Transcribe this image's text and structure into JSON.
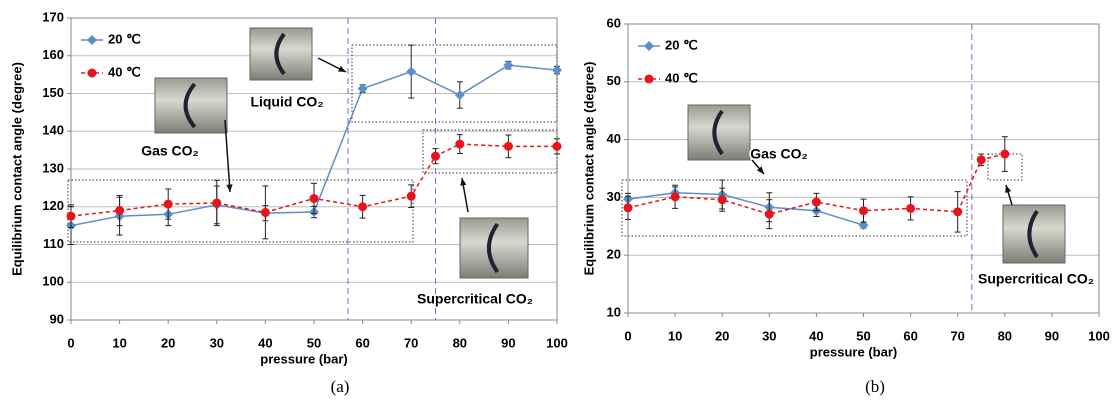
{
  "chart_data": [
    {
      "type": "line",
      "caption": "(a)",
      "xlabel": "pressure (bar)",
      "ylabel": "Equilibrium contact angle (degree)",
      "xlim": [
        0,
        100
      ],
      "xticks": [
        0,
        10,
        20,
        30,
        40,
        50,
        60,
        70,
        80,
        90,
        100
      ],
      "ylim": [
        90,
        170
      ],
      "yticks": [
        90,
        100,
        110,
        120,
        130,
        140,
        150,
        160,
        170
      ],
      "grid": true,
      "legend": "top-left",
      "vlines": [
        57,
        75
      ],
      "series": [
        {
          "name": "20 ℃",
          "color": "#5b8fc9",
          "marker": "diamond",
          "dashed": false,
          "x": [
            0,
            10,
            20,
            30,
            40,
            50,
            60,
            70,
            80,
            90,
            100
          ],
          "values": [
            115,
            117.5,
            118,
            120.5,
            118.3,
            118.6,
            151.3,
            155.8,
            149.6,
            157.5,
            156.2
          ],
          "errors": [
            5,
            5,
            3,
            5,
            2,
            1.5,
            1,
            7,
            3.5,
            1,
            1
          ]
        },
        {
          "name": "40 ℃",
          "color": "#e8141b",
          "marker": "circle",
          "dashed": true,
          "x": [
            0,
            10,
            20,
            30,
            40,
            50,
            60,
            70,
            75,
            80,
            90,
            100
          ],
          "values": [
            117.5,
            119,
            120.7,
            121,
            118.5,
            122.2,
            120,
            122.8,
            133.4,
            136.6,
            136,
            136
          ],
          "errors": [
            3,
            4,
            4,
            6,
            7,
            4,
            3,
            3,
            2,
            2.5,
            3,
            2
          ]
        }
      ],
      "annotations": [
        "Liquid CO₂",
        "Gas CO₂",
        "Supercritical CO₂"
      ]
    },
    {
      "type": "line",
      "caption": "(b)",
      "xlabel": "pressure (bar)",
      "ylabel": "Equilibrium contact angle (degree)",
      "xlim": [
        0,
        100
      ],
      "xticks": [
        0,
        10,
        20,
        30,
        40,
        50,
        60,
        70,
        80,
        90,
        100
      ],
      "ylim": [
        10,
        60
      ],
      "yticks": [
        10,
        20,
        30,
        40,
        50,
        60
      ],
      "grid": true,
      "legend": "top-left",
      "vlines": [
        73
      ],
      "series": [
        {
          "name": "20 ℃",
          "color": "#5b8fc9",
          "marker": "diamond",
          "dashed": false,
          "x": [
            0,
            10,
            20,
            30,
            40,
            50
          ],
          "values": [
            29.7,
            30.8,
            30.5,
            28.3,
            27.7,
            25.2
          ],
          "errors": [
            1,
            1,
            2.5,
            2.5,
            1,
            0.5
          ]
        },
        {
          "name": "40 ℃",
          "color": "#e8141b",
          "marker": "circle",
          "dashed": true,
          "x": [
            0,
            10,
            20,
            30,
            40,
            50,
            60,
            70,
            75,
            80
          ],
          "values": [
            28.2,
            30.1,
            29.6,
            27.1,
            29.2,
            27.7,
            28.1,
            27.5,
            36.5,
            37.5
          ],
          "errors": [
            2,
            2,
            2,
            2.5,
            1.5,
            2,
            2,
            3.5,
            1,
            3
          ]
        }
      ],
      "annotations": [
        "Gas CO₂",
        "Supercritical CO₂"
      ]
    }
  ]
}
